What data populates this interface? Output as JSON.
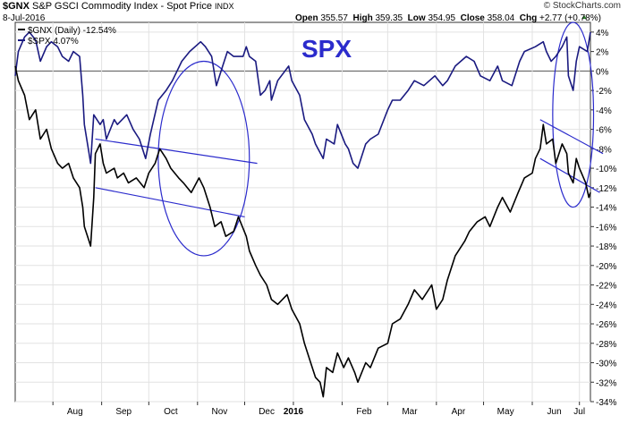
{
  "header": {
    "symbol": "$GNX",
    "name": "S&P GSCI Commodity Index - Spot Price",
    "exchange": "INDX",
    "date": "8-Jul-2016",
    "open_label": "Open",
    "open_value": "355.57",
    "high_label": "High",
    "high_value": "359.35",
    "low_label": "Low",
    "low_value": "354.95",
    "close_label": "Close",
    "close_value": "358.04",
    "chg_label": "Chg",
    "chg_value": "+2.77 (+0.78%)",
    "watermark": "© StockCharts.com"
  },
  "legend": [
    {
      "label": "$GNX (Daily) -12.54%",
      "color": "#000000"
    },
    {
      "label": "$SPX 4.07%",
      "color": "#1a1a80"
    }
  ],
  "annotation_text": "SPX",
  "colors": {
    "spx_line": "#1a1a80",
    "gnx_line": "#000000",
    "annotation": "#2b2bcc",
    "grid": "#e2e2e2",
    "zero_line": "#555555"
  },
  "chart_data": {
    "type": "line",
    "ylim": [
      -34,
      5
    ],
    "y_ticks": [
      "4%",
      "2%",
      "0%",
      "-2%",
      "-4%",
      "-6%",
      "-8%",
      "-10%",
      "-12%",
      "-14%",
      "-16%",
      "-18%",
      "-20%",
      "-22%",
      "-24%",
      "-26%",
      "-28%",
      "-30%",
      "-32%",
      "-34%"
    ],
    "x_ticks": [
      "Aug",
      "Sep",
      "Oct",
      "Nov",
      "Dec",
      "2016",
      "Feb",
      "Mar",
      "Apr",
      "May",
      "Jun",
      "Jul"
    ],
    "x_range": [
      "2015-07-08",
      "2016-07-08"
    ],
    "series": [
      {
        "name": "$SPX 4.07%",
        "points": [
          [
            "2015-07-08",
            -0.5
          ],
          [
            "2015-07-10",
            2.0
          ],
          [
            "2015-07-14",
            3.5
          ],
          [
            "2015-07-17",
            4.0
          ],
          [
            "2015-07-21",
            3.2
          ],
          [
            "2015-07-24",
            1.0
          ],
          [
            "2015-07-28",
            2.5
          ],
          [
            "2015-07-31",
            3.0
          ],
          [
            "2015-08-04",
            2.5
          ],
          [
            "2015-08-07",
            1.5
          ],
          [
            "2015-08-11",
            1.0
          ],
          [
            "2015-08-14",
            2.0
          ],
          [
            "2015-08-18",
            1.5
          ],
          [
            "2015-08-20",
            -2.5
          ],
          [
            "2015-08-21",
            -5.5
          ],
          [
            "2015-08-24",
            -8.5
          ],
          [
            "2015-08-25",
            -9.5
          ],
          [
            "2015-08-27",
            -4.5
          ],
          [
            "2015-08-31",
            -5.5
          ],
          [
            "2015-09-02",
            -5.0
          ],
          [
            "2015-09-04",
            -7.0
          ],
          [
            "2015-09-09",
            -5.0
          ],
          [
            "2015-09-11",
            -5.5
          ],
          [
            "2015-09-17",
            -4.5
          ],
          [
            "2015-09-21",
            -6.0
          ],
          [
            "2015-09-25",
            -7.0
          ],
          [
            "2015-09-29",
            -9.0
          ],
          [
            "2015-10-02",
            -6.5
          ],
          [
            "2015-10-07",
            -3.0
          ],
          [
            "2015-10-12",
            -2.0
          ],
          [
            "2015-10-16",
            -1.0
          ],
          [
            "2015-10-22",
            1.0
          ],
          [
            "2015-10-27",
            2.0
          ],
          [
            "2015-11-03",
            3.0
          ],
          [
            "2015-11-06",
            2.5
          ],
          [
            "2015-11-10",
            1.5
          ],
          [
            "2015-11-13",
            -1.5
          ],
          [
            "2015-11-17",
            0.5
          ],
          [
            "2015-11-20",
            2.0
          ],
          [
            "2015-11-24",
            1.5
          ],
          [
            "2015-11-30",
            1.5
          ],
          [
            "2015-12-02",
            2.5
          ],
          [
            "2015-12-04",
            1.5
          ],
          [
            "2015-12-08",
            1.0
          ],
          [
            "2015-12-11",
            -2.5
          ],
          [
            "2015-12-14",
            -2.0
          ],
          [
            "2015-12-17",
            -1.0
          ],
          [
            "2015-12-18",
            -3.0
          ],
          [
            "2015-12-22",
            -1.0
          ],
          [
            "2015-12-29",
            0.5
          ],
          [
            "2015-12-31",
            -1.0
          ],
          [
            "2016-01-05",
            -2.5
          ],
          [
            "2016-01-08",
            -5.0
          ],
          [
            "2016-01-13",
            -6.5
          ],
          [
            "2016-01-15",
            -7.5
          ],
          [
            "2016-01-20",
            -9.0
          ],
          [
            "2016-01-22",
            -7.0
          ],
          [
            "2016-01-27",
            -7.5
          ],
          [
            "2016-01-29",
            -5.5
          ],
          [
            "2016-02-03",
            -7.5
          ],
          [
            "2016-02-05",
            -8.0
          ],
          [
            "2016-02-08",
            -9.5
          ],
          [
            "2016-02-11",
            -10.0
          ],
          [
            "2016-02-16",
            -7.5
          ],
          [
            "2016-02-19",
            -7.0
          ],
          [
            "2016-02-24",
            -6.5
          ],
          [
            "2016-03-01",
            -4.0
          ],
          [
            "2016-03-04",
            -3.0
          ],
          [
            "2016-03-09",
            -3.0
          ],
          [
            "2016-03-14",
            -2.0
          ],
          [
            "2016-03-18",
            -1.0
          ],
          [
            "2016-03-24",
            -1.5
          ],
          [
            "2016-03-31",
            -0.5
          ],
          [
            "2016-04-05",
            -1.5
          ],
          [
            "2016-04-08",
            -1.0
          ],
          [
            "2016-04-13",
            0.5
          ],
          [
            "2016-04-20",
            1.5
          ],
          [
            "2016-04-25",
            1.0
          ],
          [
            "2016-04-29",
            -0.5
          ],
          [
            "2016-05-05",
            -1.0
          ],
          [
            "2016-05-10",
            0.5
          ],
          [
            "2016-05-13",
            -1.0
          ],
          [
            "2016-05-19",
            -1.5
          ],
          [
            "2016-05-24",
            1.0
          ],
          [
            "2016-05-27",
            2.0
          ],
          [
            "2016-06-03",
            2.5
          ],
          [
            "2016-06-08",
            3.0
          ],
          [
            "2016-06-10",
            2.0
          ],
          [
            "2016-06-13",
            1.0
          ],
          [
            "2016-06-16",
            1.5
          ],
          [
            "2016-06-20",
            2.5
          ],
          [
            "2016-06-23",
            3.5
          ],
          [
            "2016-06-24",
            -0.5
          ],
          [
            "2016-06-27",
            -2.0
          ],
          [
            "2016-06-29",
            1.0
          ],
          [
            "2016-07-01",
            2.5
          ],
          [
            "2016-07-06",
            2.0
          ],
          [
            "2016-07-08",
            4.0
          ]
        ]
      },
      {
        "name": "$GNX (Daily) -12.54%",
        "points": [
          [
            "2015-07-08",
            0.5
          ],
          [
            "2015-07-10",
            -1.0
          ],
          [
            "2015-07-14",
            -2.5
          ],
          [
            "2015-07-17",
            -5.0
          ],
          [
            "2015-07-21",
            -4.0
          ],
          [
            "2015-07-24",
            -7.0
          ],
          [
            "2015-07-28",
            -6.0
          ],
          [
            "2015-07-31",
            -8.0
          ],
          [
            "2015-08-04",
            -9.5
          ],
          [
            "2015-08-07",
            -10.0
          ],
          [
            "2015-08-11",
            -9.5
          ],
          [
            "2015-08-14",
            -11.0
          ],
          [
            "2015-08-18",
            -12.0
          ],
          [
            "2015-08-20",
            -14.0
          ],
          [
            "2015-08-21",
            -16.0
          ],
          [
            "2015-08-24",
            -17.5
          ],
          [
            "2015-08-25",
            -18.0
          ],
          [
            "2015-08-27",
            -13.0
          ],
          [
            "2015-08-28",
            -8.5
          ],
          [
            "2015-08-31",
            -7.5
          ],
          [
            "2015-09-02",
            -9.5
          ],
          [
            "2015-09-04",
            -10.5
          ],
          [
            "2015-09-09",
            -10.0
          ],
          [
            "2015-09-11",
            -11.0
          ],
          [
            "2015-09-15",
            -10.5
          ],
          [
            "2015-09-18",
            -11.5
          ],
          [
            "2015-09-23",
            -11.0
          ],
          [
            "2015-09-28",
            -12.0
          ],
          [
            "2015-10-01",
            -10.5
          ],
          [
            "2015-10-05",
            -9.5
          ],
          [
            "2015-10-08",
            -8.0
          ],
          [
            "2015-10-12",
            -9.0
          ],
          [
            "2015-10-15",
            -10.0
          ],
          [
            "2015-10-20",
            -11.0
          ],
          [
            "2015-10-23",
            -11.5
          ],
          [
            "2015-10-28",
            -12.5
          ],
          [
            "2015-11-02",
            -11.0
          ],
          [
            "2015-11-05",
            -12.0
          ],
          [
            "2015-11-09",
            -14.0
          ],
          [
            "2015-11-12",
            -16.0
          ],
          [
            "2015-11-16",
            -15.5
          ],
          [
            "2015-11-19",
            -17.0
          ],
          [
            "2015-11-24",
            -16.5
          ],
          [
            "2015-11-27",
            -15.0
          ],
          [
            "2015-12-02",
            -17.0
          ],
          [
            "2015-12-04",
            -18.5
          ],
          [
            "2015-12-08",
            -20.0
          ],
          [
            "2015-12-11",
            -21.0
          ],
          [
            "2015-12-15",
            -22.0
          ],
          [
            "2015-12-18",
            -23.5
          ],
          [
            "2015-12-22",
            -24.0
          ],
          [
            "2015-12-28",
            -23.0
          ],
          [
            "2015-12-31",
            -24.5
          ],
          [
            "2016-01-05",
            -26.0
          ],
          [
            "2016-01-08",
            -28.0
          ],
          [
            "2016-01-12",
            -30.0
          ],
          [
            "2016-01-15",
            -31.5
          ],
          [
            "2016-01-18",
            -32.0
          ],
          [
            "2016-01-20",
            -33.5
          ],
          [
            "2016-01-22",
            -30.5
          ],
          [
            "2016-01-26",
            -31.0
          ],
          [
            "2016-01-29",
            -29.0
          ],
          [
            "2016-02-02",
            -30.5
          ],
          [
            "2016-02-05",
            -29.5
          ],
          [
            "2016-02-09",
            -31.0
          ],
          [
            "2016-02-11",
            -32.0
          ],
          [
            "2016-02-16",
            -30.0
          ],
          [
            "2016-02-19",
            -30.5
          ],
          [
            "2016-02-24",
            -28.5
          ],
          [
            "2016-03-01",
            -28.0
          ],
          [
            "2016-03-04",
            -26.0
          ],
          [
            "2016-03-09",
            -25.5
          ],
          [
            "2016-03-14",
            -24.0
          ],
          [
            "2016-03-18",
            -22.5
          ],
          [
            "2016-03-23",
            -23.5
          ],
          [
            "2016-03-29",
            -22.0
          ],
          [
            "2016-04-01",
            -24.5
          ],
          [
            "2016-04-05",
            -23.5
          ],
          [
            "2016-04-08",
            -21.5
          ],
          [
            "2016-04-13",
            -19.0
          ],
          [
            "2016-04-19",
            -17.5
          ],
          [
            "2016-04-22",
            -16.5
          ],
          [
            "2016-04-27",
            -15.5
          ],
          [
            "2016-05-02",
            -15.0
          ],
          [
            "2016-05-05",
            -16.0
          ],
          [
            "2016-05-10",
            -14.0
          ],
          [
            "2016-05-13",
            -13.0
          ],
          [
            "2016-05-18",
            -14.5
          ],
          [
            "2016-05-23",
            -12.5
          ],
          [
            "2016-05-27",
            -11.0
          ],
          [
            "2016-06-01",
            -10.5
          ],
          [
            "2016-06-03",
            -9.0
          ],
          [
            "2016-06-06",
            -8.0
          ],
          [
            "2016-06-08",
            -5.5
          ],
          [
            "2016-06-10",
            -7.5
          ],
          [
            "2016-06-14",
            -7.0
          ],
          [
            "2016-06-16",
            -9.5
          ],
          [
            "2016-06-20",
            -7.5
          ],
          [
            "2016-06-23",
            -8.5
          ],
          [
            "2016-06-24",
            -10.5
          ],
          [
            "2016-06-27",
            -11.5
          ],
          [
            "2016-06-29",
            -9.0
          ],
          [
            "2016-07-01",
            -10.0
          ],
          [
            "2016-07-05",
            -11.5
          ],
          [
            "2016-07-07",
            -13.0
          ],
          [
            "2016-07-08",
            -12.5
          ]
        ]
      }
    ],
    "annotations": {
      "ellipses": [
        {
          "cx_date": "2015-11-05",
          "cy": -9.0,
          "rx_days": 29,
          "ry": 10.0
        },
        {
          "cx_date": "2016-06-27",
          "cy": -4.5,
          "rx_days": 13,
          "ry": 9.5
        }
      ],
      "trendlines": [
        {
          "from": [
            "2015-08-28",
            -7.0
          ],
          "to": [
            "2015-12-09",
            -9.5
          ]
        },
        {
          "from": [
            "2015-08-28",
            -12.0
          ],
          "to": [
            "2015-12-01",
            -15.0
          ]
        },
        {
          "from": [
            "2016-06-06",
            -5.0
          ],
          "to": [
            "2016-07-16",
            -8.5
          ]
        },
        {
          "from": [
            "2016-06-06",
            -9.0
          ],
          "to": [
            "2016-07-14",
            -12.5
          ]
        }
      ]
    }
  }
}
